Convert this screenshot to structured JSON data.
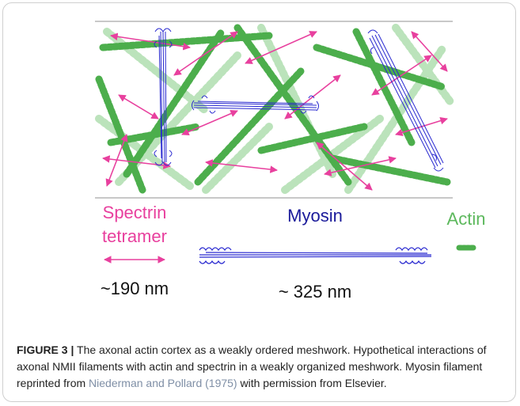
{
  "figure": {
    "legend": {
      "spectrin_label": [
        "Spectrin",
        "tetramer"
      ],
      "myosin_label": "Myosin",
      "actin_label": "Actin",
      "spectrin_length": "~190 nm",
      "myosin_length": "~ 325 nm"
    },
    "caption": {
      "label": "FIGURE 3 |",
      "title": "The axonal actin cortex as a weakly ordered meshwork.",
      "text_before": "Hypothetical interactions of axonal NMII filaments with actin and spectrin in a weakly organized meshwork. Myosin filament reprinted from",
      "citation": "Niederman and Pollard (1975)",
      "text_after": "with permission from Elsevier."
    }
  }
}
